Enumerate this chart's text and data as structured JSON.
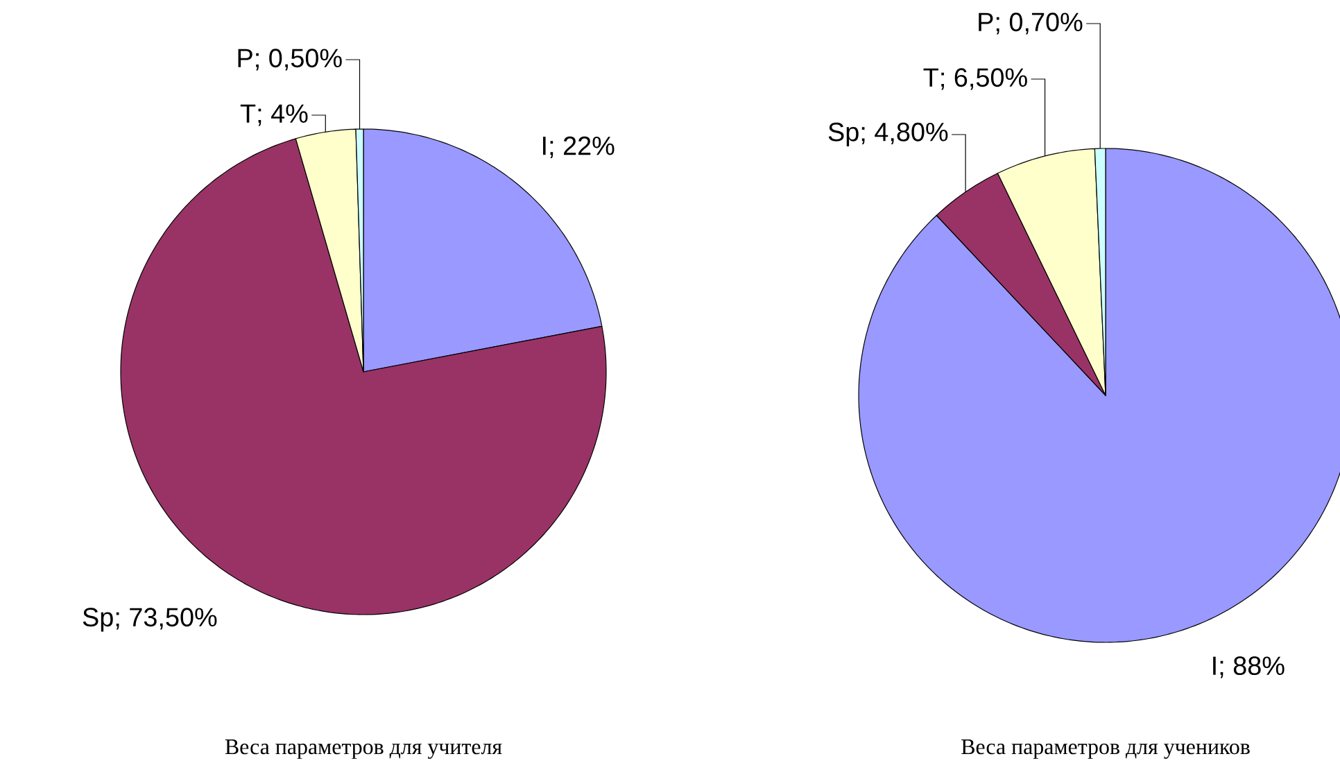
{
  "chart_data": [
    {
      "type": "pie",
      "title": "Веса параметров для учителя",
      "categories": [
        "I",
        "Sp",
        "T",
        "P"
      ],
      "values": [
        22,
        73.5,
        4,
        0.5
      ],
      "colors": [
        "#9999ff",
        "#993366",
        "#ffffcc",
        "#ccffff"
      ],
      "value_labels": [
        "; 22%",
        "; 73,50%",
        "; 4%",
        "; 0,50%"
      ]
    },
    {
      "type": "pie",
      "title": "Веса параметров для учеников",
      "categories": [
        "I",
        "Sp",
        "T",
        "P"
      ],
      "values": [
        88,
        4.8,
        6.5,
        0.7
      ],
      "colors": [
        "#9999ff",
        "#993366",
        "#ffffcc",
        "#ccffff"
      ],
      "value_labels": [
        "; 88%",
        "; 4,80%",
        "; 6,50%",
        "; 0,70%"
      ]
    }
  ]
}
